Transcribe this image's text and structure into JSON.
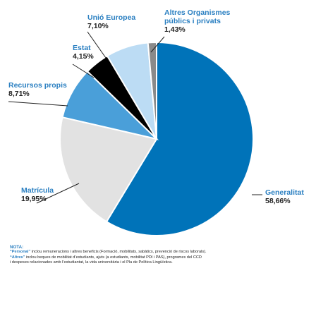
{
  "chart_data": {
    "type": "pie",
    "slices": [
      {
        "label": "Generalitat",
        "value": 58.66,
        "display": "58,66%",
        "color": "#0073b9"
      },
      {
        "label": "Matrícula",
        "value": 19.95,
        "display": "19,95%",
        "color": "#e2e2e2"
      },
      {
        "label": "Recursos propis",
        "value": 8.71,
        "display": "8,71%",
        "color": "#4a9fd9"
      },
      {
        "label": "Estat",
        "value": 4.15,
        "display": "4,15%",
        "color": "#000000"
      },
      {
        "label": "Unió Europea",
        "value": 7.1,
        "display": "7,10%",
        "color": "#bcdcf4"
      },
      {
        "label": "Altres Organismes públics i privats",
        "label_lines": [
          "Altres Organismes",
          "públics i privats"
        ],
        "value": 1.43,
        "display": "1,43%",
        "color": "#8a8a8a"
      }
    ]
  },
  "note": {
    "title": "NOTA:",
    "line1_key": "“Personal”",
    "line1_text": " inclou remuneracions i altres beneficis (Formació, mobilitats, sabàtics, prevenció de riscos laborals).",
    "line2_key": "“Altres”",
    "line2_text": " inclou beques de mobilitat d’estudiants, ajuts (a estudiants, mobilitat PDI i PAS), programes del CCD",
    "line3_text": "i despeses relacionades amb l’estudiantat, la vida universitària i el Pla de Política Lingüística."
  }
}
